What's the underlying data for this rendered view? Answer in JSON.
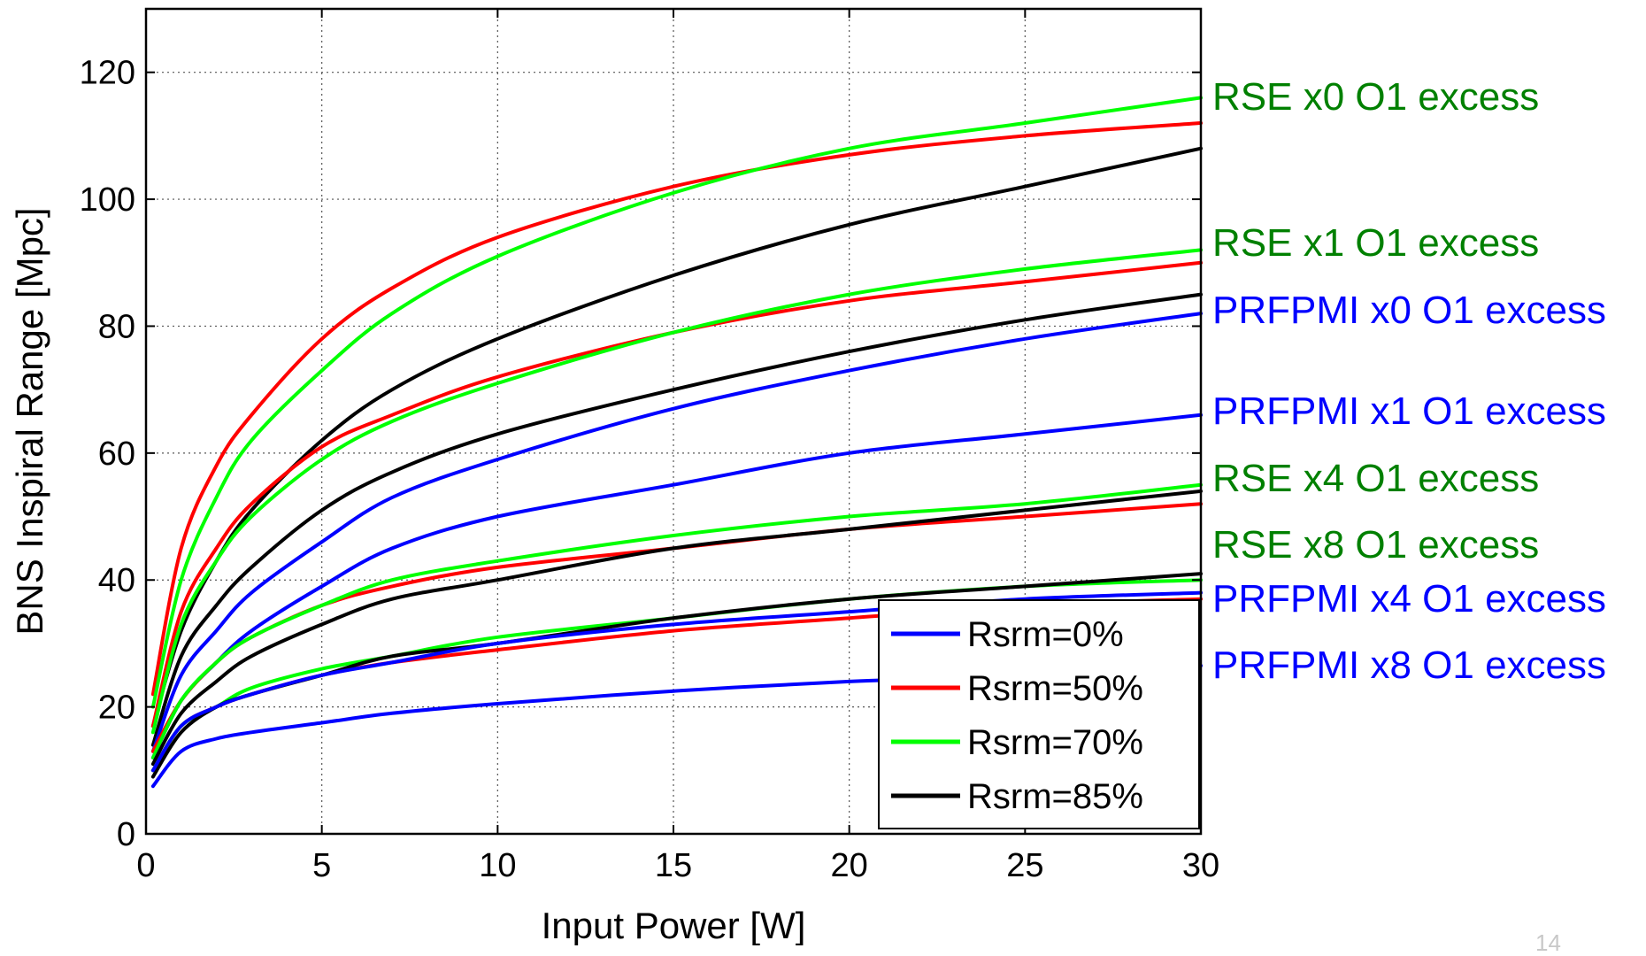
{
  "slide_number": "14",
  "chart_data": {
    "type": "line",
    "title": "",
    "xlabel": "Input Power [W]",
    "ylabel": "BNS Inspiral Range [Mpc]",
    "xlim": [
      0,
      30
    ],
    "ylim": [
      0,
      130
    ],
    "xticks": [
      0,
      5,
      10,
      15,
      20,
      25,
      30
    ],
    "yticks": [
      0,
      20,
      40,
      60,
      80,
      100,
      120
    ],
    "grid": true,
    "legend_position": "bottom-right",
    "legend": [
      {
        "label": "Rsrm=0%",
        "color": "#0000ff"
      },
      {
        "label": "Rsrm=50%",
        "color": "#ff0000"
      },
      {
        "label": "Rsrm=70%",
        "color": "#00ff00"
      },
      {
        "label": "Rsrm=85%",
        "color": "#000000"
      }
    ],
    "x": [
      0.2,
      1,
      2,
      3,
      5,
      7,
      10,
      15,
      20,
      25,
      30
    ],
    "series": [
      {
        "group": "RSE x0 O1 excess",
        "legend": "Rsrm=50%",
        "color": "#ff0000",
        "values": [
          22,
          45,
          58,
          66,
          78,
          86,
          94,
          102,
          107,
          110,
          112
        ]
      },
      {
        "group": "RSE x0 O1 excess",
        "legend": "Rsrm=70%",
        "color": "#00ff00",
        "values": [
          20,
          40,
          53,
          62,
          73,
          82,
          91,
          101,
          108,
          112,
          116
        ]
      },
      {
        "group": "RSE x0 O1 excess",
        "legend": "Rsrm=85%",
        "color": "#000000",
        "values": [
          17,
          32,
          43,
          51,
          62,
          70,
          78,
          88,
          96,
          102,
          108
        ]
      },
      {
        "group": "RSE x1 O1 excess",
        "legend": "Rsrm=50%",
        "color": "#ff0000",
        "values": [
          17,
          35,
          45,
          52,
          61,
          66,
          72,
          79,
          84,
          87,
          90
        ]
      },
      {
        "group": "RSE x1 O1 excess",
        "legend": "Rsrm=70%",
        "color": "#00ff00",
        "values": [
          16,
          33,
          43,
          50,
          59,
          65,
          71,
          79,
          85,
          89,
          92
        ]
      },
      {
        "group": "RSE x1 O1 excess",
        "legend": "Rsrm=85%",
        "color": "#000000",
        "values": [
          14,
          28,
          36,
          42,
          51,
          57,
          63,
          70,
          76,
          81,
          85
        ]
      },
      {
        "group": "PRFPMI x0 O1 excess",
        "legend": "Rsrm=0%",
        "color": "#0000ff",
        "values": [
          13,
          25,
          32,
          38,
          46,
          53,
          59,
          67,
          73,
          78,
          82
        ]
      },
      {
        "group": "PRFPMI x1 O1 excess",
        "legend": "Rsrm=0%",
        "color": "#0000ff",
        "values": [
          12,
          21,
          27,
          32,
          39,
          45,
          50,
          55,
          60,
          63,
          66
        ]
      },
      {
        "group": "RSE x4 O1 excess",
        "legend": "Rsrm=50%",
        "color": "#ff0000",
        "values": [
          13,
          21,
          27,
          31,
          36,
          39,
          42,
          45,
          48,
          50,
          52
        ]
      },
      {
        "group": "RSE x4 O1 excess",
        "legend": "Rsrm=70%",
        "color": "#00ff00",
        "values": [
          12,
          21,
          27,
          31,
          36,
          40,
          43,
          47,
          50,
          52,
          55
        ]
      },
      {
        "group": "RSE x8 O1 excess",
        "legend": "Rsrm=85%",
        "color": "#000000",
        "values": [
          11,
          19,
          24,
          28,
          33,
          37,
          40,
          45,
          48,
          51,
          54
        ]
      },
      {
        "group": "PRFPMI x4 O1 excess",
        "legend": "Rsrm=50%",
        "color": "#ff0000",
        "values": [
          10,
          17,
          20,
          22,
          25,
          27,
          29,
          32,
          34,
          36,
          37
        ]
      },
      {
        "group": "PRFPMI x4 O1 excess",
        "legend": "Rsrm=70%",
        "color": "#00ff00",
        "values": [
          10,
          17,
          20,
          23,
          26,
          28,
          31,
          34,
          37,
          39,
          40
        ]
      },
      {
        "group": "PRFPMI x4 O1 excess",
        "legend": "Rsrm=85%",
        "color": "#000000",
        "values": [
          9,
          16,
          20,
          22,
          25,
          28,
          30,
          34,
          37,
          39,
          41
        ]
      },
      {
        "group": "PRFPMI x4 O1 excess",
        "legend": "Rsrm=0%",
        "color": "#0000ff",
        "values": [
          10,
          17,
          20,
          22,
          25,
          27,
          30,
          33,
          35,
          37,
          38
        ]
      },
      {
        "group": "PRFPMI x8 O1 excess",
        "legend": "Rsrm=0%",
        "color": "#0000ff",
        "values": [
          7.5,
          13,
          15,
          16,
          17.5,
          19,
          20.5,
          22.5,
          24,
          25,
          26.5
        ]
      }
    ],
    "annotations": [
      {
        "text": "RSE x0 O1 excess",
        "color": "#008000",
        "y": 116
      },
      {
        "text": "RSE x1 O1 excess",
        "color": "#008000",
        "y": 93
      },
      {
        "text": "PRFPMI x0 O1 excess",
        "color": "#0000ff",
        "y": 82.5
      },
      {
        "text": "PRFPMI x1 O1 excess",
        "color": "#0000ff",
        "y": 66.5
      },
      {
        "text": "RSE x4 O1 excess",
        "color": "#008000",
        "y": 56
      },
      {
        "text": "RSE x8 O1 excess",
        "color": "#008000",
        "y": 45.5
      },
      {
        "text": "PRFPMI x4 O1 excess",
        "color": "#0000ff",
        "y": 37
      },
      {
        "text": "PRFPMI x8 O1 excess",
        "color": "#0000ff",
        "y": 26.5
      }
    ]
  }
}
